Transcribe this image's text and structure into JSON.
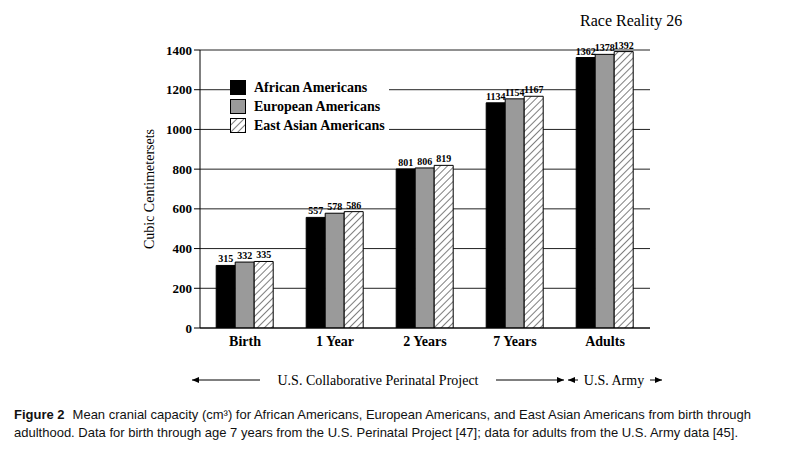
{
  "chart_data": {
    "type": "bar",
    "header": "Race Reality 26",
    "y_label": "Cubic Centimetersets",
    "categories": [
      "Birth",
      "1 Year",
      "2 Years",
      "7 Years",
      "Adults"
    ],
    "series": [
      {
        "name": "African Americans",
        "color": "#000000",
        "values": [
          315,
          557,
          801,
          1134,
          1362
        ]
      },
      {
        "name": "European Americans",
        "color": "#9a9a9a",
        "values": [
          332,
          578,
          806,
          1154,
          1378
        ]
      },
      {
        "name": "East Asian Americans",
        "color": "#ffffff",
        "values": [
          335,
          586,
          819,
          1167,
          1392
        ]
      }
    ],
    "ylim": [
      0,
      1400
    ],
    "yticks": [
      0,
      200,
      400,
      600,
      800,
      1000,
      1200,
      1400
    ],
    "grid": true,
    "legend": "upper left",
    "data_labels": true,
    "annotations": [
      "U.S. Collaborative Perinatal Project",
      "U.S. Army"
    ],
    "caption": {
      "label": "Figure 2",
      "text": "Mean cranial capacity (cm³) for African Americans, European Americans, and East Asian Americans from birth through adulthood. Data for birth through age 7 years from the U.S. Perinatal Project [47]; data for adults from the U.S. Army data [45]."
    }
  }
}
